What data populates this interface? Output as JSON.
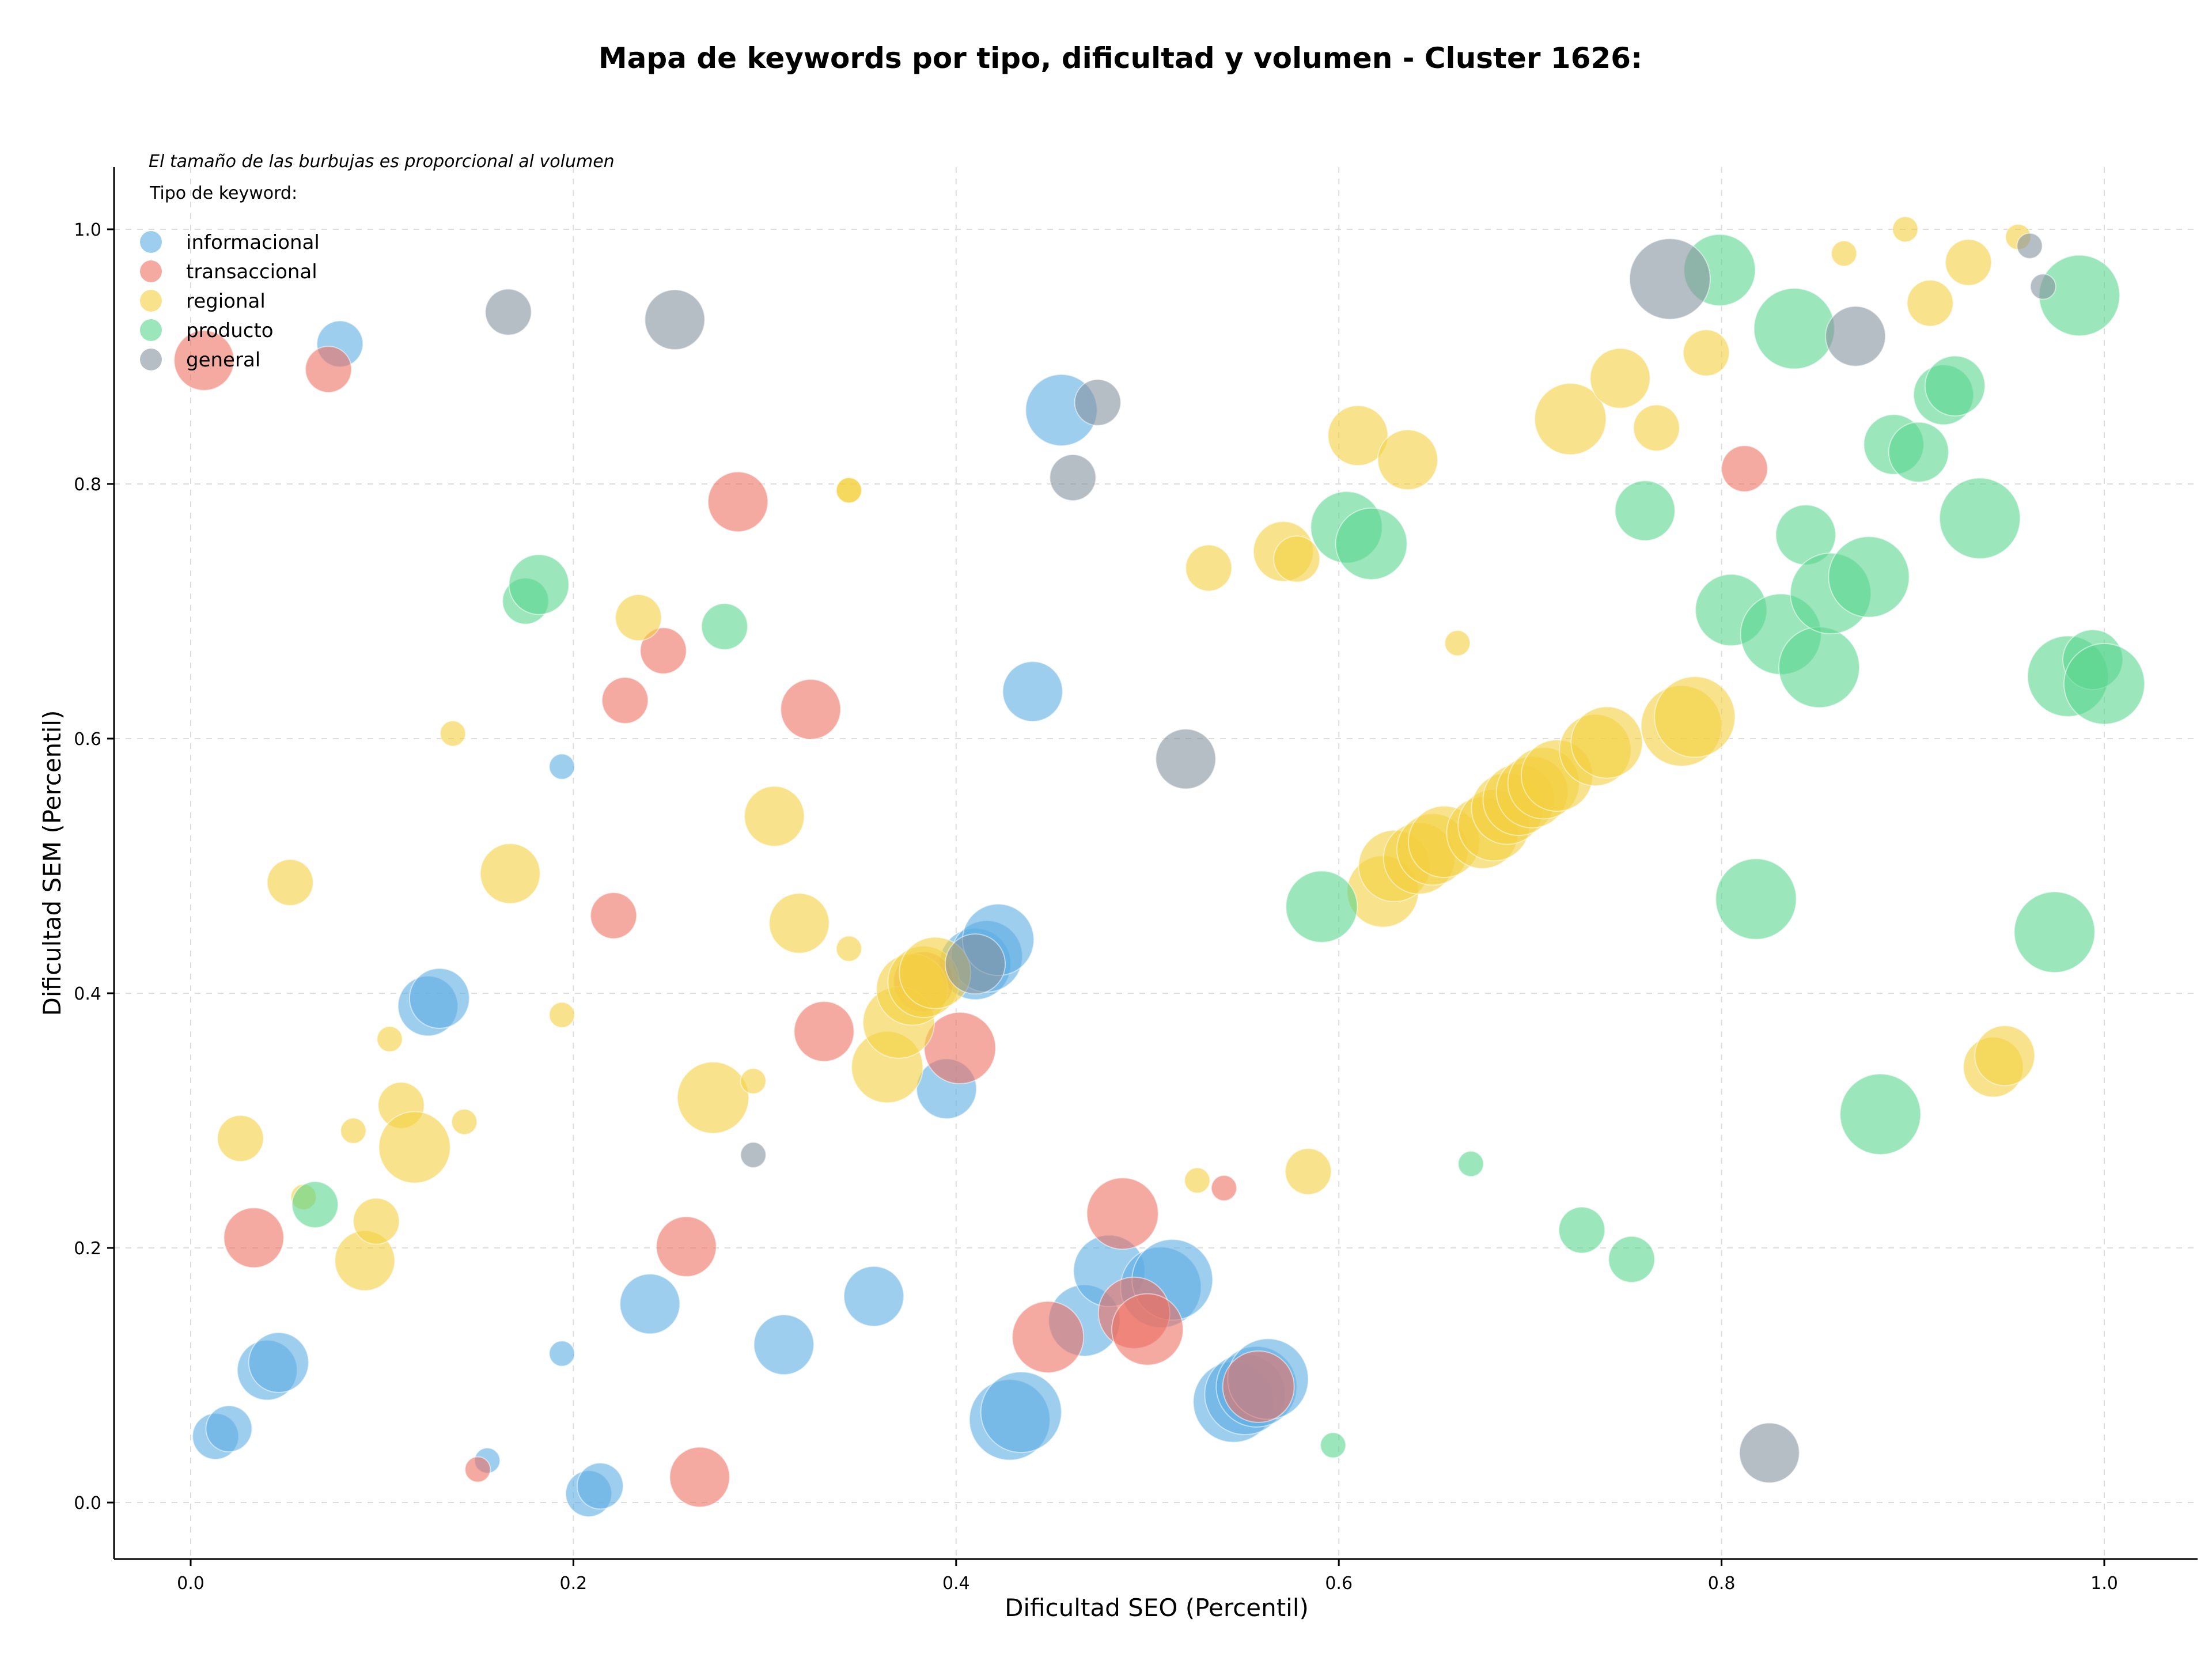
{
  "chart_data": {
    "type": "scatter",
    "title": "Mapa de keywords por tipo, dificultad y volumen - Cluster 1626:",
    "xlabel": "Dificultad SEO (Percentil)",
    "ylabel": "Dificultad SEM (Percentil)",
    "note": "El tamaño de las burbujas es proporcional al volumen",
    "legend_title": "Tipo de keyword:",
    "legend_position": "top-left",
    "grid": true,
    "xlim": [
      -0.04,
      1.05
    ],
    "ylim": [
      -0.04,
      1.05
    ],
    "x_ticks": [
      "0.0",
      "0.2",
      "0.4",
      "0.6",
      "0.8",
      "1.0"
    ],
    "y_ticks": [
      "0.0",
      "0.2",
      "0.4",
      "0.6",
      "0.8",
      "1.0"
    ],
    "series": [
      {
        "name": "informacional",
        "color": "#5dade2",
        "points": [
          [
            0.078,
            0.91,
            2
          ],
          [
            0.013,
            0.052,
            2
          ],
          [
            0.02,
            0.058,
            2
          ],
          [
            0.04,
            0.104,
            3
          ],
          [
            0.046,
            0.11,
            3
          ],
          [
            0.124,
            0.39,
            3
          ],
          [
            0.13,
            0.396,
            3
          ],
          [
            0.155,
            0.033,
            1
          ],
          [
            0.194,
            0.578,
            1
          ],
          [
            0.194,
            0.117,
            1
          ],
          [
            0.208,
            0.007,
            2
          ],
          [
            0.214,
            0.013,
            2
          ],
          [
            0.24,
            0.156,
            3
          ],
          [
            0.31,
            0.124,
            3
          ],
          [
            0.357,
            0.162,
            3
          ],
          [
            0.395,
            0.325,
            3
          ],
          [
            0.41,
            0.423,
            4
          ],
          [
            0.416,
            0.429,
            4
          ],
          [
            0.422,
            0.442,
            4
          ],
          [
            0.428,
            0.065,
            5
          ],
          [
            0.434,
            0.071,
            5
          ],
          [
            0.44,
            0.637,
            3
          ],
          [
            0.455,
            0.858,
            4
          ],
          [
            0.467,
            0.143,
            4
          ],
          [
            0.48,
            0.182,
            4
          ],
          [
            0.507,
            0.169,
            5
          ],
          [
            0.513,
            0.175,
            5
          ],
          [
            0.545,
            0.079,
            5
          ],
          [
            0.551,
            0.085,
            5
          ],
          [
            0.557,
            0.091,
            5
          ],
          [
            0.563,
            0.097,
            5
          ]
        ]
      },
      {
        "name": "transaccional",
        "color": "#ec7063",
        "points": [
          [
            0.007,
            0.897,
            3
          ],
          [
            0.072,
            0.89,
            2
          ],
          [
            0.033,
            0.208,
            3
          ],
          [
            0.15,
            0.026,
            1
          ],
          [
            0.221,
            0.461,
            2
          ],
          [
            0.227,
            0.63,
            2
          ],
          [
            0.247,
            0.669,
            2
          ],
          [
            0.259,
            0.201,
            3
          ],
          [
            0.266,
            0.02,
            3
          ],
          [
            0.286,
            0.786,
            3
          ],
          [
            0.324,
            0.623,
            3
          ],
          [
            0.331,
            0.37,
            3
          ],
          [
            0.383,
            0.409,
            3
          ],
          [
            0.402,
            0.357,
            4
          ],
          [
            0.448,
            0.13,
            4
          ],
          [
            0.487,
            0.227,
            4
          ],
          [
            0.493,
            0.149,
            4
          ],
          [
            0.5,
            0.136,
            4
          ],
          [
            0.54,
            0.247,
            1
          ],
          [
            0.558,
            0.091,
            4
          ],
          [
            0.812,
            0.812,
            2
          ]
        ]
      },
      {
        "name": "regional",
        "color": "#f4d03f",
        "points": [
          [
            0.026,
            0.286,
            2
          ],
          [
            0.052,
            0.487,
            2
          ],
          [
            0.059,
            0.24,
            1
          ],
          [
            0.085,
            0.292,
            1
          ],
          [
            0.091,
            0.19,
            3
          ],
          [
            0.097,
            0.221,
            2
          ],
          [
            0.104,
            0.364,
            1
          ],
          [
            0.11,
            0.312,
            2
          ],
          [
            0.117,
            0.279,
            4
          ],
          [
            0.137,
            0.604,
            1
          ],
          [
            0.143,
            0.299,
            1
          ],
          [
            0.167,
            0.494,
            3
          ],
          [
            0.194,
            0.383,
            1
          ],
          [
            0.234,
            0.695,
            2
          ],
          [
            0.273,
            0.318,
            4
          ],
          [
            0.294,
            0.331,
            1
          ],
          [
            0.305,
            0.539,
            3
          ],
          [
            0.318,
            0.455,
            3
          ],
          [
            0.344,
            0.435,
            1
          ],
          [
            0.344,
            0.795,
            1
          ],
          [
            0.344,
            0.795,
            1
          ],
          [
            0.364,
            0.342,
            4
          ],
          [
            0.37,
            0.377,
            4
          ],
          [
            0.377,
            0.403,
            4
          ],
          [
            0.383,
            0.409,
            4
          ],
          [
            0.389,
            0.416,
            4
          ],
          [
            0.526,
            0.253,
            1
          ],
          [
            0.532,
            0.734,
            2
          ],
          [
            0.571,
            0.747,
            3
          ],
          [
            0.578,
            0.741,
            2
          ],
          [
            0.584,
            0.26,
            2
          ],
          [
            0.61,
            0.838,
            3
          ],
          [
            0.623,
            0.48,
            4
          ],
          [
            0.629,
            0.5,
            4
          ],
          [
            0.636,
            0.819,
            3
          ],
          [
            0.642,
            0.506,
            4
          ],
          [
            0.649,
            0.513,
            4
          ],
          [
            0.655,
            0.519,
            4
          ],
          [
            0.662,
            0.675,
            1
          ],
          [
            0.675,
            0.526,
            4
          ],
          [
            0.681,
            0.532,
            4
          ],
          [
            0.688,
            0.545,
            4
          ],
          [
            0.694,
            0.552,
            4
          ],
          [
            0.701,
            0.558,
            4
          ],
          [
            0.707,
            0.565,
            4
          ],
          [
            0.714,
            0.571,
            4
          ],
          [
            0.721,
            0.851,
            4
          ],
          [
            0.734,
            0.591,
            4
          ],
          [
            0.74,
            0.597,
            4
          ],
          [
            0.747,
            0.883,
            3
          ],
          [
            0.766,
            0.844,
            2
          ],
          [
            0.779,
            0.61,
            5
          ],
          [
            0.786,
            0.617,
            5
          ],
          [
            0.792,
            0.903,
            2
          ],
          [
            0.864,
            0.981,
            1
          ],
          [
            0.896,
            1.0,
            1
          ],
          [
            0.909,
            0.942,
            2
          ],
          [
            0.929,
            0.974,
            2
          ],
          [
            0.942,
            0.342,
            3
          ],
          [
            0.948,
            0.351,
            3
          ],
          [
            0.955,
            0.994,
            1
          ]
        ]
      },
      {
        "name": "producto",
        "color": "#58d68d",
        "points": [
          [
            0.065,
            0.234,
            2
          ],
          [
            0.175,
            0.708,
            2
          ],
          [
            0.182,
            0.721,
            3
          ],
          [
            0.279,
            0.688,
            2
          ],
          [
            0.591,
            0.468,
            4
          ],
          [
            0.604,
            0.766,
            4
          ],
          [
            0.617,
            0.753,
            4
          ],
          [
            0.597,
            0.045,
            1
          ],
          [
            0.669,
            0.266,
            1
          ],
          [
            0.727,
            0.214,
            2
          ],
          [
            0.753,
            0.191,
            2
          ],
          [
            0.76,
            0.779,
            3
          ],
          [
            0.799,
            0.968,
            4
          ],
          [
            0.805,
            0.701,
            4
          ],
          [
            0.818,
            0.474,
            5
          ],
          [
            0.831,
            0.682,
            5
          ],
          [
            0.838,
            0.922,
            5
          ],
          [
            0.844,
            0.76,
            3
          ],
          [
            0.851,
            0.656,
            5
          ],
          [
            0.857,
            0.714,
            5
          ],
          [
            0.877,
            0.727,
            5
          ],
          [
            0.883,
            0.305,
            5
          ],
          [
            0.89,
            0.831,
            3
          ],
          [
            0.903,
            0.825,
            3
          ],
          [
            0.916,
            0.87,
            3
          ],
          [
            0.922,
            0.877,
            3
          ],
          [
            0.935,
            0.773,
            5
          ],
          [
            0.974,
            0.448,
            5
          ],
          [
            0.981,
            0.649,
            5
          ],
          [
            0.987,
            0.948,
            5
          ],
          [
            0.994,
            0.662,
            3
          ],
          [
            1.0,
            0.643,
            5
          ]
        ]
      },
      {
        "name": "general",
        "color": "#85929e",
        "points": [
          [
            0.166,
            0.935,
            2
          ],
          [
            0.253,
            0.929,
            3
          ],
          [
            0.294,
            0.273,
            1
          ],
          [
            0.41,
            0.423,
            3
          ],
          [
            0.461,
            0.805,
            2
          ],
          [
            0.474,
            0.864,
            2
          ],
          [
            0.52,
            0.584,
            3
          ],
          [
            0.773,
            0.961,
            5
          ],
          [
            0.825,
            0.039,
            3
          ],
          [
            0.87,
            0.916,
            3
          ],
          [
            0.961,
            0.987,
            1
          ],
          [
            0.968,
            0.955,
            1
          ]
        ]
      }
    ]
  }
}
